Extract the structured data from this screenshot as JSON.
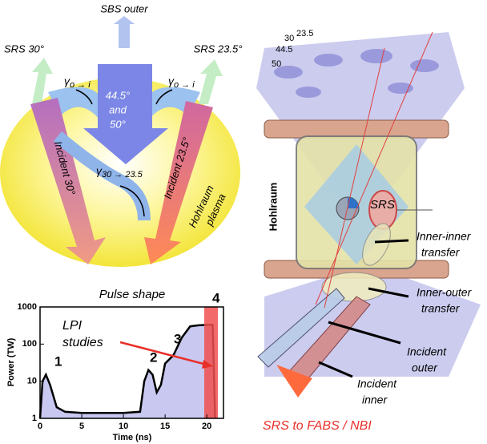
{
  "diagram": {
    "sbs_outer": "SBS outer",
    "srs_30": "SRS 30°",
    "srs_23_5": "SRS 23.5°",
    "gamma_left": {
      "symbol": "γ",
      "subscript": "o → i"
    },
    "gamma_right": {
      "symbol": "γ",
      "subscript": "o → i"
    },
    "gamma_30": {
      "symbol": "γ",
      "subscript": "30 → 23.5"
    },
    "center_angles": [
      "44.5°",
      "and",
      "50°"
    ],
    "incident_30": "Incident 30°",
    "incident_23_5": "Incident 23.5°",
    "plasma": [
      "Hohlraum",
      "plasma"
    ],
    "cone_labels": [
      "50",
      "44.5",
      "30",
      "23.5"
    ],
    "hohlraum": "Hohlraum",
    "srs": "SRS",
    "inner_inner": [
      "Inner-inner",
      "transfer"
    ],
    "inner_outer": [
      "Inner-outer",
      "transfer"
    ],
    "incident_outer": [
      "Incident",
      "outer"
    ],
    "incident_inner": [
      "Incident",
      "inner"
    ],
    "srs_to": "SRS to FABS / NBI"
  },
  "chart_data": {
    "type": "line",
    "title": "Pulse shape",
    "xlabel": "Time (ns)",
    "ylabel": "Power (TW)",
    "log_y": true,
    "color": "#000000",
    "fill": "#c8c8f0",
    "x": [
      0,
      0.3,
      0.7,
      1.2,
      2,
      3,
      5,
      10,
      12,
      12.5,
      13,
      13.5,
      14,
      14.5,
      15,
      16,
      17,
      18,
      19,
      20,
      20.7,
      21
    ],
    "values": [
      1,
      10,
      15,
      8,
      2,
      1.5,
      1.4,
      1.4,
      1.5,
      10,
      20,
      15,
      5,
      8,
      30,
      50,
      150,
      300,
      320,
      330,
      330,
      1
    ],
    "xlim": [
      0,
      22
    ],
    "ylim": [
      1,
      1000
    ],
    "xticks": [
      0,
      5,
      10,
      15,
      20
    ],
    "yticks": [
      1,
      10,
      100,
      1000
    ],
    "annotations": [
      "1",
      "2",
      "3",
      "4",
      "LPI",
      "studies"
    ]
  }
}
